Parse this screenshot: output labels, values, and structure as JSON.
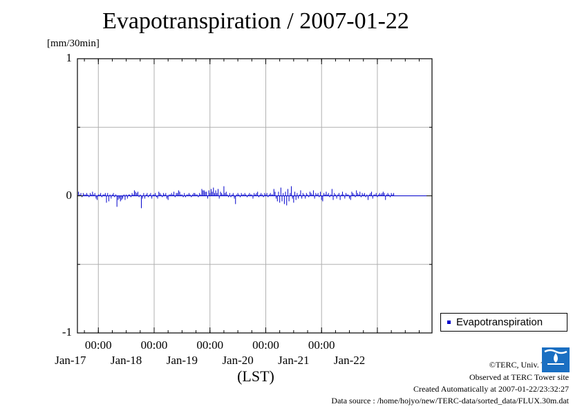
{
  "title": "Evapotranspiration / 2007-01-22",
  "unit_label": "[mm/30min]",
  "colors": {
    "series": "#0000cc",
    "grid": "#b0b0b0",
    "axis": "#000000",
    "logo": "#1a6fc2"
  },
  "chart_data": {
    "type": "bar",
    "title": "Evapotranspiration / 2007-01-22",
    "ylabel": "[mm/30min]",
    "xlabel": "(LST)",
    "ylim": [
      -1,
      1
    ],
    "yticks": [
      {
        "value": 1,
        "label": "1"
      },
      {
        "value": 0,
        "label": "0"
      },
      {
        "value": -1,
        "label": "-1"
      }
    ],
    "xlim": [
      "2007-01-16T15:00",
      "2007-01-22T23:30"
    ],
    "xticks": [
      {
        "time": "00:00",
        "date": "Jan-17"
      },
      {
        "time": "00:00",
        "date": "Jan-18"
      },
      {
        "time": "00:00",
        "date": "Jan-19"
      },
      {
        "time": "00:00",
        "date": "Jan-20"
      },
      {
        "time": "00:00",
        "date": "Jan-21"
      },
      {
        "time": "00:00",
        "date": "Jan-22"
      }
    ],
    "grid": true,
    "legend_position": "bottom-right",
    "series": [
      {
        "name": "Evapotranspiration",
        "start": "2007-01-16T15:00",
        "interval_minutes": 30,
        "values": [
          0.02,
          0.03,
          0.01,
          0.02,
          -0.01,
          0.02,
          0.01,
          0.01,
          0.02,
          0.01,
          -0.01,
          0.02,
          0.01,
          0.03,
          0.01,
          0.02,
          -0.02,
          -0.03,
          0.01,
          0.01,
          0.02,
          -0.01,
          0.01,
          0.01,
          0.02,
          -0.05,
          0.02,
          -0.04,
          0.01,
          -0.02,
          0.01,
          0.02,
          -0.01,
          0.01,
          -0.08,
          -0.03,
          -0.02,
          -0.04,
          -0.03,
          -0.02,
          0.01,
          -0.03,
          0.01,
          -0.02,
          0.01,
          0.01,
          -0.01,
          0.02,
          0.01,
          0.04,
          0.03,
          0.02,
          0.03,
          -0.01,
          0.01,
          -0.09,
          -0.02,
          0.02,
          -0.02,
          0.01,
          0.02,
          -0.01,
          0.01,
          0.02,
          -0.02,
          0.01,
          0.01,
          0.02,
          -0.01,
          -0.02,
          0.03,
          0.02,
          0.01,
          -0.01,
          0.02,
          0.01,
          0.02,
          -0.02,
          -0.03,
          0.01,
          0.01,
          0.02,
          0.01,
          0.03,
          -0.01,
          0.02,
          0.02,
          0.04,
          0.03,
          0.01,
          0.01,
          -0.01,
          0.02,
          -0.01,
          0.01,
          0.01,
          0.02,
          0.01,
          -0.01,
          0.01,
          0.02,
          0.02,
          0.01,
          0.01,
          -0.01,
          0.02,
          0.01,
          0.05,
          0.04,
          0.04,
          0.03,
          0.03,
          -0.02,
          0.04,
          0.02,
          0.05,
          0.03,
          0.06,
          0.02,
          0.04,
          0.02,
          0.05,
          -0.02,
          0.03,
          0.02,
          0.01,
          0.07,
          0.02,
          0.03,
          0.01,
          -0.01,
          0.02,
          -0.01,
          0.01,
          0.02,
          -0.02,
          -0.06,
          0.01,
          0.02,
          0.01,
          -0.01,
          0.02,
          0.01,
          0.01,
          0.02,
          0.01,
          -0.01,
          0.01,
          0.02,
          0.01,
          0.01,
          -0.02,
          0.02,
          0.01,
          0.02,
          0.03,
          -0.01,
          0.01,
          0.02,
          0.01,
          -0.01,
          0.02,
          0.01,
          0.02,
          -0.01,
          0.01,
          0.02,
          0.01,
          0.01,
          0.05,
          0.03,
          -0.02,
          -0.04,
          0.03,
          -0.05,
          0.06,
          -0.04,
          0.02,
          -0.06,
          0.03,
          -0.07,
          0.05,
          -0.04,
          0.02,
          0.07,
          -0.02,
          -0.05,
          0.03,
          -0.03,
          0.02,
          -0.02,
          0.01,
          0.04,
          -0.02,
          0.02,
          0.01,
          -0.02,
          0.02,
          0.01,
          -0.01,
          0.03,
          0.02,
          0.01,
          0.04,
          -0.02,
          0.02,
          0.01,
          0.02,
          -0.01,
          0.03,
          -0.03,
          -0.04,
          0.02,
          0.01,
          0.03,
          0.01,
          0.02,
          -0.01,
          0.01,
          0.05,
          -0.03,
          0.02,
          0.01,
          -0.02,
          0.01,
          0.02,
          -0.03,
          0.01,
          0.03,
          0.01,
          -0.02,
          0.02,
          0.01,
          0.01,
          -0.02,
          -0.03,
          0.03,
          0.02,
          0.01,
          -0.01,
          0.04,
          0.02,
          0.01,
          0.03,
          -0.01,
          0.02,
          0.01,
          0.02,
          -0.01,
          0.01,
          -0.03,
          0.01,
          0.02,
          0.03,
          -0.02,
          0.01,
          0.01,
          0.02,
          -0.01,
          0.01,
          0.02,
          0.01,
          0.02,
          0.03,
          0.02,
          -0.03,
          0.01,
          0.02,
          0.01,
          -0.01,
          0.02,
          0.01,
          0.02
        ]
      }
    ]
  },
  "legend": {
    "label": "Evapotranspiration"
  },
  "footer": {
    "copyright": "©TERC, Univ. Tsukuba",
    "site": "Observed at TERC Tower site",
    "created": "Created Automatically at 2007-01-22/23:32:27",
    "source": "Data source : /home/hojyo/new/TERC-data/sorted_data/FLUX.30m.dat"
  },
  "logo": {
    "text": "TERC"
  }
}
